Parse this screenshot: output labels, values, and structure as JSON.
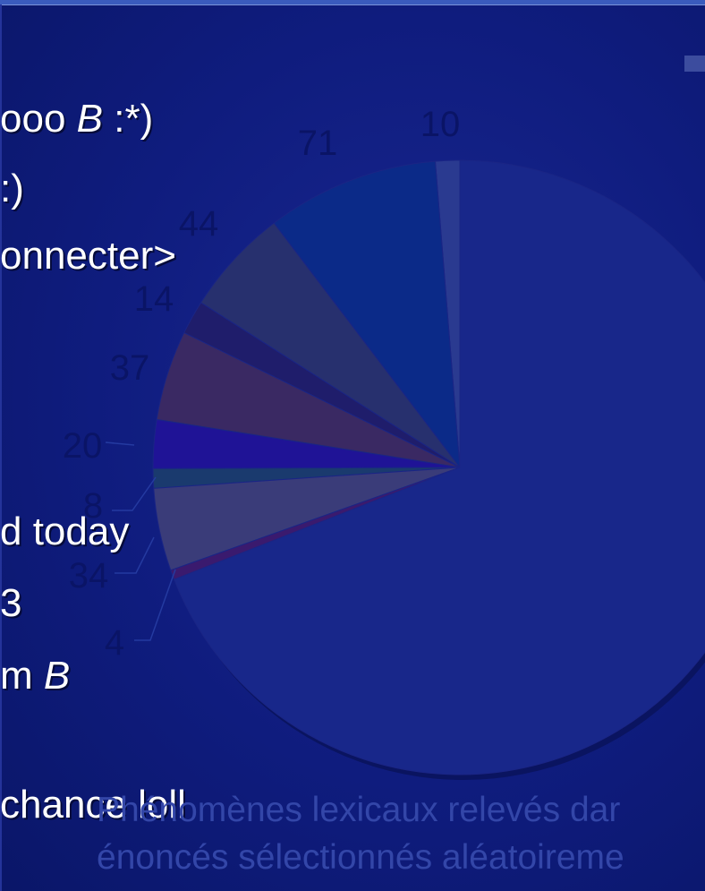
{
  "slide": {
    "lines": [
      {
        "text": "ooo ",
        "italic": "B",
        "tail": " :*)"
      },
      {
        "text": ":)",
        "italic": "",
        "tail": ""
      },
      {
        "text": "onnecter>",
        "italic": "",
        "tail": ""
      },
      {
        "text": "d today",
        "italic": "",
        "tail": ""
      },
      {
        "text": "3",
        "italic": "",
        "tail": ""
      },
      {
        "text": "m ",
        "italic": "B",
        "tail": ""
      },
      {
        "text": "chance loll",
        "italic": "",
        "tail": ""
      }
    ]
  },
  "caption": {
    "line1": "Phénomènes lexicaux relevés dar",
    "line2": "énoncés sélectionnés aléatoireme"
  },
  "colors": {
    "background": "#0d1a78",
    "label": "#0a1466",
    "caption": "#3346a8"
  },
  "chart_data": {
    "type": "pie",
    "title": "",
    "start_angle_deg": 0,
    "direction": "counterclockwise",
    "slices": [
      {
        "label": "10",
        "value": 10,
        "color": "#2a3a90"
      },
      {
        "label": "71",
        "value": 71,
        "color": "#0b2a88"
      },
      {
        "label": "44",
        "value": 44,
        "color": "#27306e"
      },
      {
        "label": "14",
        "value": 14,
        "color": "#1f1d6b"
      },
      {
        "label": "37",
        "value": 37,
        "color": "#3a2963"
      },
      {
        "label": "20",
        "value": 20,
        "color": "#1f1396"
      },
      {
        "label": "8",
        "value": 8,
        "color": "#1a3a6e"
      },
      {
        "label": "34",
        "value": 34,
        "color": "#3a3c79"
      },
      {
        "label": "4",
        "value": 4,
        "color": "#3a1a6e"
      },
      {
        "label": "",
        "value": 540,
        "color": "#18278a"
      }
    ]
  }
}
